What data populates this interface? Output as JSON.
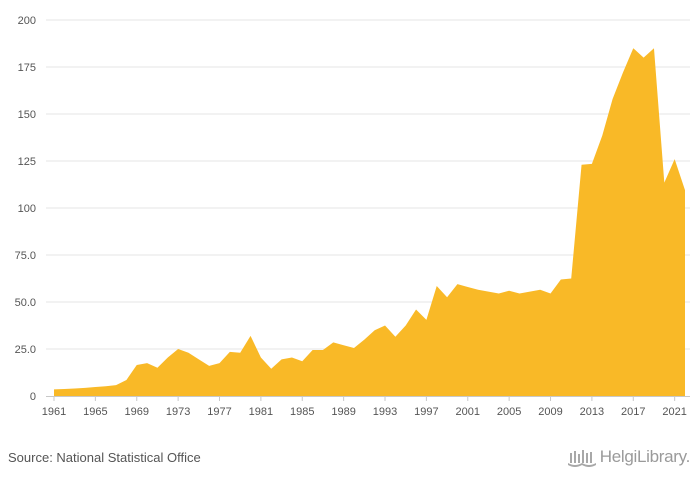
{
  "chart_data": {
    "type": "area",
    "title": "",
    "xlabel": "",
    "ylabel": "",
    "ylim": [
      0,
      200
    ],
    "xlim": [
      1961,
      2022
    ],
    "grid": true,
    "yticks": [
      "0",
      "25.0",
      "50.0",
      "75.0",
      "100",
      "125",
      "150",
      "175",
      "200"
    ],
    "xticks": [
      "1961",
      "1965",
      "1969",
      "1973",
      "1977",
      "1981",
      "1985",
      "1989",
      "1993",
      "1997",
      "2001",
      "2005",
      "2009",
      "2013",
      "2017",
      "2021"
    ],
    "series": [
      {
        "color": "#f9b927",
        "x": [
          1961,
          1962,
          1963,
          1964,
          1965,
          1966,
          1967,
          1968,
          1969,
          1970,
          1971,
          1972,
          1973,
          1974,
          1975,
          1976,
          1977,
          1978,
          1979,
          1980,
          1981,
          1982,
          1983,
          1984,
          1985,
          1986,
          1987,
          1988,
          1989,
          1990,
          1991,
          1992,
          1993,
          1994,
          1995,
          1996,
          1997,
          1998,
          1999,
          2000,
          2001,
          2002,
          2003,
          2004,
          2005,
          2006,
          2007,
          2008,
          2009,
          2010,
          2011,
          2012,
          2013,
          2014,
          2015,
          2016,
          2017,
          2018,
          2019,
          2020,
          2021,
          2022
        ],
        "values": [
          3.5,
          3.7,
          4.0,
          4.3,
          4.8,
          5.2,
          5.8,
          8.5,
          16.5,
          17.5,
          15.0,
          20.5,
          25.0,
          23.0,
          19.5,
          16.0,
          17.5,
          23.5,
          23.0,
          32.0,
          20.5,
          14.5,
          19.5,
          20.5,
          18.5,
          24.5,
          24.5,
          28.5,
          27.0,
          25.5,
          30.0,
          35.0,
          37.5,
          31.5,
          37.5,
          46.0,
          40.5,
          58.5,
          52.5,
          59.5,
          58.0,
          56.5,
          55.5,
          54.5,
          56.0,
          54.5,
          55.5,
          56.5,
          54.5,
          62.0,
          62.5,
          123.0,
          123.5,
          138.5,
          158.0,
          172.0,
          185.0,
          180.0,
          185.0,
          113.5,
          126.0,
          109.5
        ]
      }
    ]
  },
  "footer": {
    "source": "Source: National Statistical Office",
    "brand": "HelgiLibrary."
  },
  "colors": {
    "area": "#f9b927",
    "grid": "#e6e6e6",
    "axis": "#c8c8c8",
    "text": "#555555"
  }
}
